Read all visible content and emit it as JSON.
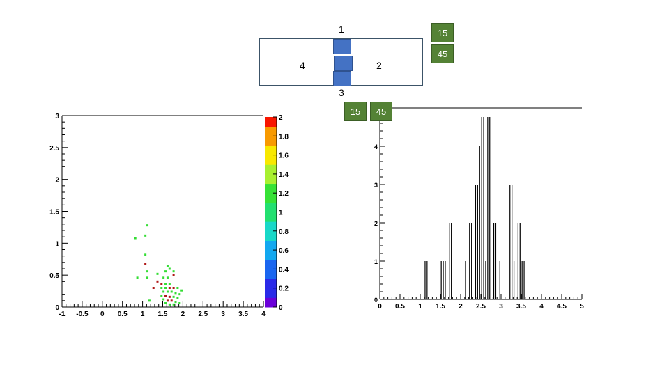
{
  "detector": {
    "labels": {
      "top": "1",
      "right": "2",
      "bottom": "3",
      "left": "4"
    },
    "segment_color": "#4472c4"
  },
  "tags": {
    "top_right_1": "15",
    "top_right_2": "45",
    "hist_1": "15",
    "hist_2": "45",
    "color": "#548235"
  },
  "chart_data": [
    {
      "type": "heatmap",
      "xlim": [
        -1,
        4
      ],
      "ylim": [
        0,
        3
      ],
      "x_ticks": [
        "-1",
        "-0.5",
        "0",
        "0.5",
        "1",
        "1.5",
        "2",
        "2.5",
        "3",
        "3.5",
        "4"
      ],
      "y_ticks": [
        "0",
        "0.5",
        "1",
        "1.5",
        "2",
        "2.5",
        "3"
      ],
      "colorbar": {
        "range": [
          0,
          2
        ],
        "ticks": [
          "0",
          "0.2",
          "0.4",
          "0.6",
          "0.8",
          "1",
          "1.2",
          "1.4",
          "1.6",
          "1.8",
          "2"
        ],
        "colors": [
          "#6a00d8",
          "#2a2ae8",
          "#1a66f0",
          "#12a8f0",
          "#18d8c8",
          "#22e070",
          "#36e236",
          "#a8f030",
          "#f8e800",
          "#f89a00",
          "#f81600"
        ]
      },
      "points": [
        {
          "x": 1.12,
          "y": 1.28,
          "z": 1
        },
        {
          "x": 0.82,
          "y": 1.08,
          "z": 1
        },
        {
          "x": 1.07,
          "y": 1.12,
          "z": 1
        },
        {
          "x": 1.07,
          "y": 0.82,
          "z": 1
        },
        {
          "x": 1.07,
          "y": 0.68,
          "z": 2
        },
        {
          "x": 1.12,
          "y": 0.56,
          "z": 1
        },
        {
          "x": 0.87,
          "y": 0.46,
          "z": 1
        },
        {
          "x": 1.12,
          "y": 0.46,
          "z": 1
        },
        {
          "x": 1.62,
          "y": 0.64,
          "z": 1
        },
        {
          "x": 1.67,
          "y": 0.6,
          "z": 1
        },
        {
          "x": 1.57,
          "y": 0.56,
          "z": 1
        },
        {
          "x": 1.77,
          "y": 0.56,
          "z": 1
        },
        {
          "x": 1.37,
          "y": 0.52,
          "z": 1
        },
        {
          "x": 1.77,
          "y": 0.5,
          "z": 2
        },
        {
          "x": 1.52,
          "y": 0.46,
          "z": 1
        },
        {
          "x": 1.62,
          "y": 0.46,
          "z": 1
        },
        {
          "x": 1.37,
          "y": 0.4,
          "z": 2
        },
        {
          "x": 1.47,
          "y": 0.36,
          "z": 2
        },
        {
          "x": 1.57,
          "y": 0.36,
          "z": 1
        },
        {
          "x": 1.67,
          "y": 0.36,
          "z": 1
        },
        {
          "x": 1.27,
          "y": 0.3,
          "z": 2
        },
        {
          "x": 1.47,
          "y": 0.3,
          "z": 1
        },
        {
          "x": 1.57,
          "y": 0.3,
          "z": 1
        },
        {
          "x": 1.67,
          "y": 0.3,
          "z": 2
        },
        {
          "x": 1.77,
          "y": 0.3,
          "z": 2
        },
        {
          "x": 1.87,
          "y": 0.3,
          "z": 1
        },
        {
          "x": 1.97,
          "y": 0.26,
          "z": 1
        },
        {
          "x": 1.52,
          "y": 0.24,
          "z": 1
        },
        {
          "x": 1.62,
          "y": 0.24,
          "z": 1
        },
        {
          "x": 1.72,
          "y": 0.24,
          "z": 1
        },
        {
          "x": 1.82,
          "y": 0.22,
          "z": 1
        },
        {
          "x": 1.92,
          "y": 0.2,
          "z": 1
        },
        {
          "x": 1.47,
          "y": 0.18,
          "z": 1
        },
        {
          "x": 1.57,
          "y": 0.18,
          "z": 2
        },
        {
          "x": 1.67,
          "y": 0.16,
          "z": 2
        },
        {
          "x": 1.77,
          "y": 0.16,
          "z": 1
        },
        {
          "x": 1.87,
          "y": 0.14,
          "z": 1
        },
        {
          "x": 1.52,
          "y": 0.12,
          "z": 1
        },
        {
          "x": 1.62,
          "y": 0.1,
          "z": 2
        },
        {
          "x": 1.72,
          "y": 0.1,
          "z": 2
        },
        {
          "x": 1.82,
          "y": 0.08,
          "z": 1
        },
        {
          "x": 1.17,
          "y": 0.1,
          "z": 1
        },
        {
          "x": 1.57,
          "y": 0.06,
          "z": 1
        },
        {
          "x": 1.67,
          "y": 0.04,
          "z": 1
        },
        {
          "x": 1.77,
          "y": 0.04,
          "z": 1
        },
        {
          "x": 1.92,
          "y": 0.06,
          "z": 1
        }
      ]
    },
    {
      "type": "bar",
      "xlim": [
        0,
        5
      ],
      "ylim": [
        0,
        5
      ],
      "x_ticks": [
        "0",
        "0.5",
        "1",
        "1.5",
        "2",
        "2.5",
        "3",
        "3.5",
        "4",
        "4.5",
        "5"
      ],
      "y_ticks": [
        "0",
        "1",
        "2",
        "3",
        "4"
      ],
      "bars": [
        {
          "x": 1.12,
          "y": 1
        },
        {
          "x": 1.17,
          "y": 1
        },
        {
          "x": 1.52,
          "y": 1
        },
        {
          "x": 1.57,
          "y": 1
        },
        {
          "x": 1.62,
          "y": 1
        },
        {
          "x": 1.72,
          "y": 2
        },
        {
          "x": 1.77,
          "y": 2
        },
        {
          "x": 2.12,
          "y": 1
        },
        {
          "x": 2.22,
          "y": 2
        },
        {
          "x": 2.27,
          "y": 2
        },
        {
          "x": 2.37,
          "y": 3
        },
        {
          "x": 2.42,
          "y": 3
        },
        {
          "x": 2.47,
          "y": 4
        },
        {
          "x": 2.52,
          "y": 5
        },
        {
          "x": 2.57,
          "y": 5
        },
        {
          "x": 2.62,
          "y": 1
        },
        {
          "x": 2.67,
          "y": 5
        },
        {
          "x": 2.72,
          "y": 5
        },
        {
          "x": 2.82,
          "y": 2
        },
        {
          "x": 2.87,
          "y": 2
        },
        {
          "x": 2.97,
          "y": 1
        },
        {
          "x": 3.22,
          "y": 3
        },
        {
          "x": 3.27,
          "y": 3
        },
        {
          "x": 3.32,
          "y": 1
        },
        {
          "x": 3.42,
          "y": 2
        },
        {
          "x": 3.47,
          "y": 2
        },
        {
          "x": 3.52,
          "y": 1
        },
        {
          "x": 3.57,
          "y": 1
        }
      ]
    }
  ]
}
